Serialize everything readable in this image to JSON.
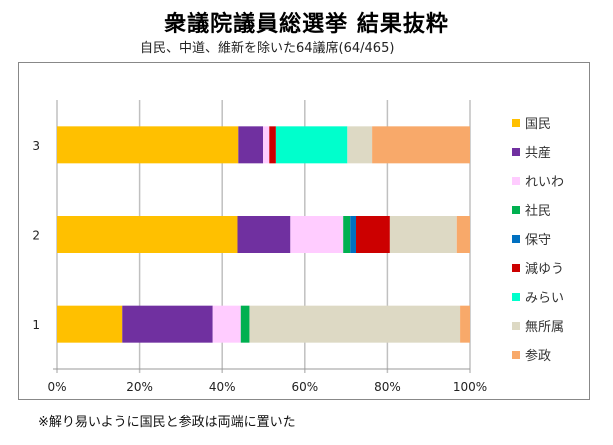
{
  "chart_data": {
    "type": "bar",
    "orientation": "horizontal",
    "stacked": "percent",
    "title": "衆議院議員総選挙 結果抜粋",
    "subtitle": "自民、中道、維新を除いた64議席(64/465)",
    "categories": [
      "1",
      "2",
      "3"
    ],
    "series": [
      {
        "name": "国民",
        "color": "#FFC000",
        "values": [
          15.8,
          43.7,
          43.9
        ]
      },
      {
        "name": "共産",
        "color": "#7030A0",
        "values": [
          21.9,
          12.8,
          6.0
        ]
      },
      {
        "name": "れいわ",
        "color": "#FFCCFF",
        "values": [
          6.8,
          12.8,
          1.5
        ]
      },
      {
        "name": "社民",
        "color": "#00B050",
        "values": [
          2.1,
          1.7,
          0
        ]
      },
      {
        "name": "保守",
        "color": "#0070C0",
        "values": [
          0,
          1.4,
          0
        ]
      },
      {
        "name": "減ゆう",
        "color": "#CC0000",
        "values": [
          0,
          8.2,
          1.6
        ]
      },
      {
        "name": "みらい",
        "color": "#00FFCC",
        "values": [
          0,
          0,
          17.3
        ]
      },
      {
        "name": "無所属",
        "color": "#DDD9C4",
        "values": [
          51.0,
          16.2,
          6.0
        ]
      },
      {
        "name": "参政",
        "color": "#F8A96A",
        "values": [
          2.4,
          3.2,
          23.7
        ]
      }
    ],
    "xlim": [
      0,
      100
    ],
    "xticks": [
      "0%",
      "20%",
      "40%",
      "60%",
      "80%",
      "100%"
    ],
    "grid": true,
    "legend": "right",
    "footnote": "※解り易いように国民と参政は両端に置いた"
  }
}
